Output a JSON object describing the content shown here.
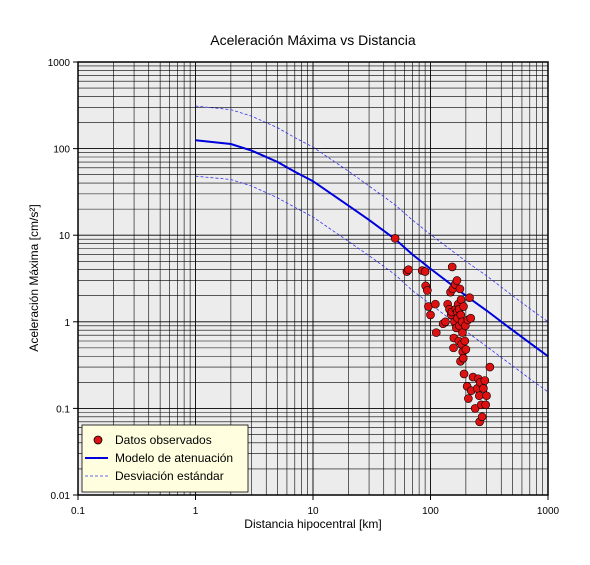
{
  "chart_data": {
    "type": "scatter",
    "title": "Aceleración Máxima vs Distancia",
    "xlabel": "Distancia hipocentral [km]",
    "ylabel": "Aceleración Máxima [cm/s²]",
    "x_scale": "log",
    "y_scale": "log",
    "xlim": [
      0.1,
      1000
    ],
    "ylim": [
      0.01,
      1000
    ],
    "x_ticks": [
      {
        "value": 0.1,
        "label": "0.1"
      },
      {
        "value": 1,
        "label": "1"
      },
      {
        "value": 10,
        "label": "10"
      },
      {
        "value": 100,
        "label": "100"
      },
      {
        "value": 1000,
        "label": "1000"
      }
    ],
    "y_ticks": [
      {
        "value": 0.01,
        "label": "0.01"
      },
      {
        "value": 0.1,
        "label": "0.1"
      },
      {
        "value": 1,
        "label": "1"
      },
      {
        "value": 10,
        "label": "10"
      },
      {
        "value": 100,
        "label": "100"
      },
      {
        "value": 1000,
        "label": "1000"
      }
    ],
    "grid": true,
    "legend_position": "bottom-left",
    "colors": {
      "plot_background": "#ececec",
      "grid": "#000000",
      "observed": "#dd1111",
      "model": "#0000dd",
      "deviation": "#3333ee",
      "legend_background": "#ffffe0"
    },
    "series": [
      {
        "name": "Datos observados",
        "kind": "scatter",
        "points": [
          [
            50,
            9.2
          ],
          [
            63,
            3.8
          ],
          [
            65,
            4.0
          ],
          [
            85,
            3.9
          ],
          [
            90,
            3.8
          ],
          [
            91,
            2.6
          ],
          [
            94,
            2.3
          ],
          [
            96,
            1.5
          ],
          [
            100,
            1.2
          ],
          [
            110,
            1.6
          ],
          [
            112,
            0.75
          ],
          [
            128,
            0.95
          ],
          [
            134,
            1.0
          ],
          [
            140,
            1.6
          ],
          [
            145,
            1.4
          ],
          [
            148,
            2.2
          ],
          [
            150,
            1.2
          ],
          [
            152,
            1.3
          ],
          [
            153,
            4.3
          ],
          [
            155,
            2.4
          ],
          [
            157,
            0.5
          ],
          [
            158,
            0.65
          ],
          [
            160,
            1.0
          ],
          [
            162,
            2.7
          ],
          [
            164,
            1.4
          ],
          [
            166,
            0.85
          ],
          [
            168,
            3.0
          ],
          [
            169,
            1.3
          ],
          [
            170,
            1.1
          ],
          [
            172,
            1.6
          ],
          [
            174,
            0.6
          ],
          [
            175,
            1.4
          ],
          [
            176,
            0.9
          ],
          [
            178,
            2.4
          ],
          [
            180,
            0.35
          ],
          [
            181,
            1.2
          ],
          [
            182,
            1.8
          ],
          [
            184,
            0.55
          ],
          [
            186,
            1.0
          ],
          [
            187,
            0.75
          ],
          [
            188,
            0.45
          ],
          [
            190,
            0.38
          ],
          [
            191,
            1.5
          ],
          [
            193,
            0.25
          ],
          [
            196,
            0.6
          ],
          [
            198,
            0.9
          ],
          [
            200,
            0.48
          ],
          [
            205,
            0.18
          ],
          [
            208,
            1.05
          ],
          [
            210,
            0.13
          ],
          [
            215,
            1.9
          ],
          [
            220,
            1.1
          ],
          [
            222,
            0.16
          ],
          [
            230,
            0.23
          ],
          [
            240,
            0.1
          ],
          [
            250,
            0.17
          ],
          [
            255,
            0.22
          ],
          [
            260,
            0.14
          ],
          [
            262,
            0.07
          ],
          [
            265,
            0.2
          ],
          [
            270,
            0.11
          ],
          [
            275,
            0.08
          ],
          [
            282,
            0.17
          ],
          [
            290,
            0.21
          ],
          [
            295,
            0.11
          ],
          [
            300,
            0.14
          ],
          [
            320,
            0.3
          ]
        ]
      },
      {
        "name": "Modelo de atenuación",
        "kind": "line",
        "points": [
          [
            1,
            125
          ],
          [
            2,
            113
          ],
          [
            3,
            95
          ],
          [
            5,
            70
          ],
          [
            7,
            54
          ],
          [
            10,
            42
          ],
          [
            20,
            22
          ],
          [
            30,
            15
          ],
          [
            50,
            9
          ],
          [
            70,
            6
          ],
          [
            100,
            4.1
          ],
          [
            200,
            2.0
          ],
          [
            300,
            1.35
          ],
          [
            500,
            0.8
          ],
          [
            700,
            0.57
          ],
          [
            1000,
            0.4
          ]
        ]
      },
      {
        "name": "Desviación estándar",
        "kind": "line",
        "style": "dashed",
        "upper": [
          [
            1,
            310
          ],
          [
            2,
            282
          ],
          [
            3,
            237
          ],
          [
            5,
            174
          ],
          [
            7,
            134
          ],
          [
            10,
            104
          ],
          [
            20,
            55
          ],
          [
            30,
            37
          ],
          [
            50,
            22.4
          ],
          [
            70,
            15
          ],
          [
            100,
            10.2
          ],
          [
            200,
            5.0
          ],
          [
            300,
            3.4
          ],
          [
            500,
            2.0
          ],
          [
            700,
            1.42
          ],
          [
            1000,
            1.0
          ]
        ],
        "lower": [
          [
            1,
            48
          ],
          [
            2,
            44
          ],
          [
            3,
            37
          ],
          [
            5,
            27
          ],
          [
            7,
            21
          ],
          [
            10,
            16.2
          ],
          [
            20,
            8.5
          ],
          [
            30,
            5.8
          ],
          [
            50,
            3.5
          ],
          [
            70,
            2.3
          ],
          [
            100,
            1.6
          ],
          [
            200,
            0.78
          ],
          [
            300,
            0.52
          ],
          [
            500,
            0.31
          ],
          [
            700,
            0.22
          ],
          [
            1000,
            0.155
          ]
        ]
      }
    ]
  }
}
